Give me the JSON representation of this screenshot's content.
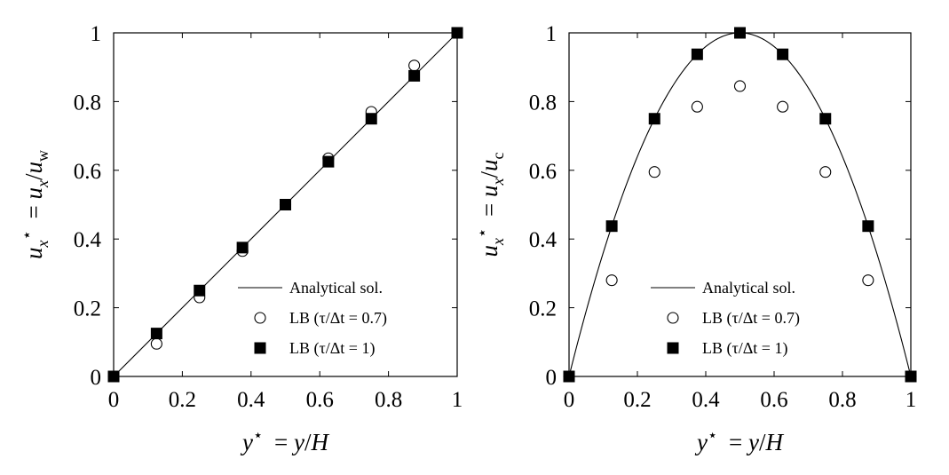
{
  "chart_data": [
    {
      "type": "line",
      "xlabel": "y⋆ = y/H",
      "ylabel": "ux⋆ = ux/uw",
      "xlim": [
        0,
        1
      ],
      "ylim": [
        0,
        1
      ],
      "x_ticks": [
        "0",
        "0.2",
        "0.4",
        "0.6",
        "0.8",
        "1"
      ],
      "y_ticks": [
        "0",
        "0.2",
        "0.4",
        "0.6",
        "0.8",
        "1"
      ],
      "grid": false,
      "legend_position": "bottom-right",
      "series": [
        {
          "name": "Analytical sol.",
          "marker": "line",
          "x": [
            0,
            1
          ],
          "y": [
            0,
            1
          ]
        },
        {
          "name": "LB (τ/Δt = 0.7)",
          "marker": "open-circle",
          "x": [
            0,
            0.125,
            0.25,
            0.375,
            0.5,
            0.625,
            0.75,
            0.875,
            1
          ],
          "y": [
            0,
            0.095,
            0.23,
            0.365,
            0.5,
            0.635,
            0.77,
            0.905,
            1
          ]
        },
        {
          "name": "LB (τ/Δt = 1)",
          "marker": "filled-square",
          "x": [
            0,
            0.125,
            0.25,
            0.375,
            0.5,
            0.625,
            0.75,
            0.875,
            1
          ],
          "y": [
            0,
            0.125,
            0.25,
            0.375,
            0.5,
            0.625,
            0.75,
            0.875,
            1
          ]
        }
      ]
    },
    {
      "type": "line",
      "xlabel": "y⋆ = y/H",
      "ylabel": "ux⋆ = ux/uc",
      "xlim": [
        0,
        1
      ],
      "ylim": [
        0,
        1
      ],
      "x_ticks": [
        "0",
        "0.2",
        "0.4",
        "0.6",
        "0.8",
        "1"
      ],
      "y_ticks": [
        "0",
        "0.2",
        "0.4",
        "0.6",
        "0.8",
        "1"
      ],
      "grid": false,
      "legend_position": "bottom-center",
      "series": [
        {
          "name": "Analytical sol.",
          "marker": "line",
          "function": "4y(1-y)"
        },
        {
          "name": "LB (τ/Δt = 0.7)",
          "marker": "open-circle",
          "x": [
            0,
            0.125,
            0.25,
            0.375,
            0.5,
            0.625,
            0.75,
            0.875,
            1
          ],
          "y": [
            0,
            0.28,
            0.595,
            0.785,
            0.845,
            0.785,
            0.595,
            0.28,
            0
          ]
        },
        {
          "name": "LB (τ/Δt = 1)",
          "marker": "filled-square",
          "x": [
            0,
            0.125,
            0.25,
            0.375,
            0.5,
            0.625,
            0.75,
            0.875,
            1
          ],
          "y": [
            0,
            0.4375,
            0.75,
            0.9375,
            1,
            0.9375,
            0.75,
            0.4375,
            0
          ]
        }
      ]
    }
  ]
}
